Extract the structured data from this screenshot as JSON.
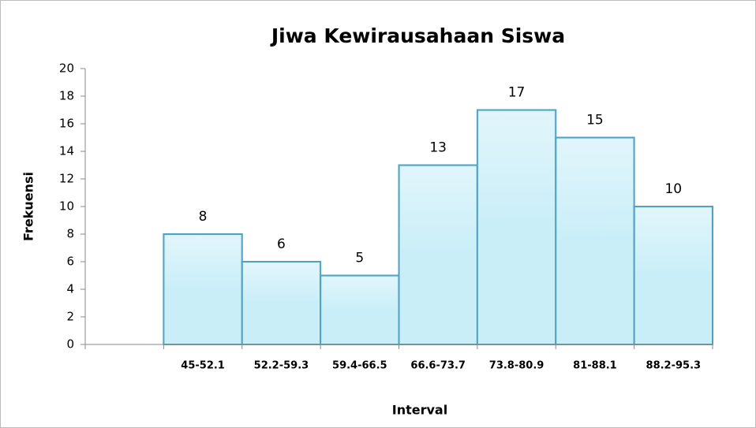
{
  "chart_data": {
    "type": "bar",
    "title": "Jiwa Kewirausahaan Siswa",
    "x_label": "Interval",
    "y_label": "Frekuensi",
    "categories": [
      null,
      "45-52.1",
      "52.2-59.3",
      "59.4-66.5",
      "66.6-73.7",
      "73.8-80.9",
      "81-88.1",
      "88.2-95.3"
    ],
    "values": [
      null,
      8,
      6,
      5,
      13,
      17,
      15,
      10
    ],
    "color": "#c9eef8",
    "ylim": [
      0,
      20
    ],
    "yticks": [
      0,
      2,
      4,
      6,
      8,
      10,
      12,
      14,
      16,
      18,
      20
    ],
    "grid": false
  }
}
